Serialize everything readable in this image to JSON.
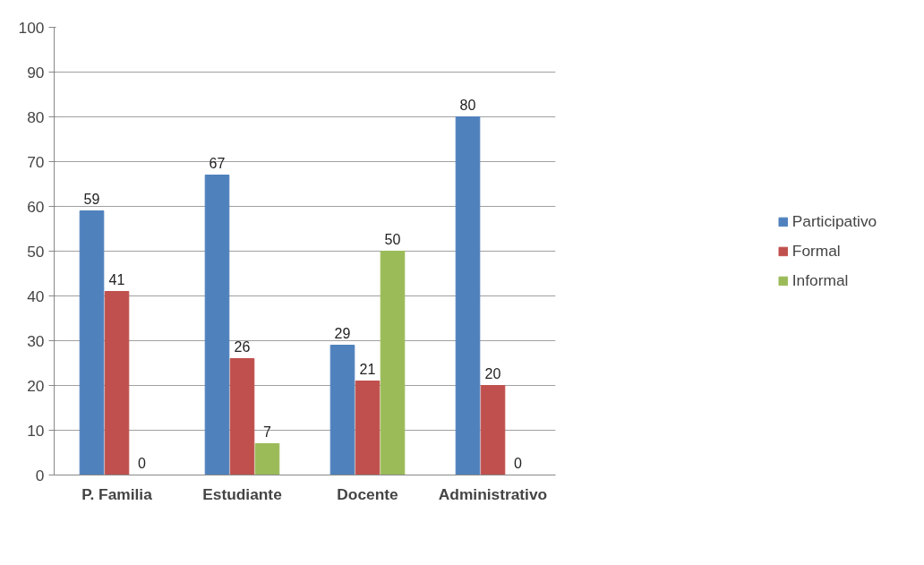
{
  "chart_data": {
    "type": "bar",
    "categories": [
      "P. Familia",
      "Estudiante",
      "Docente",
      "Administrativo"
    ],
    "series": [
      {
        "name": "Participativo",
        "color": "#4f81bd",
        "values": [
          59,
          67,
          29,
          80
        ]
      },
      {
        "name": "Formal",
        "color": "#c0504d",
        "values": [
          41,
          26,
          21,
          20
        ]
      },
      {
        "name": "Informal",
        "color": "#9bbb59",
        "values": [
          0,
          7,
          50,
          0
        ]
      }
    ],
    "ylim": [
      0,
      100
    ],
    "yticks": [
      0,
      10,
      20,
      30,
      40,
      50,
      60,
      70,
      80,
      90,
      100
    ],
    "grid": "y",
    "legend": "right",
    "data_labels": true
  }
}
